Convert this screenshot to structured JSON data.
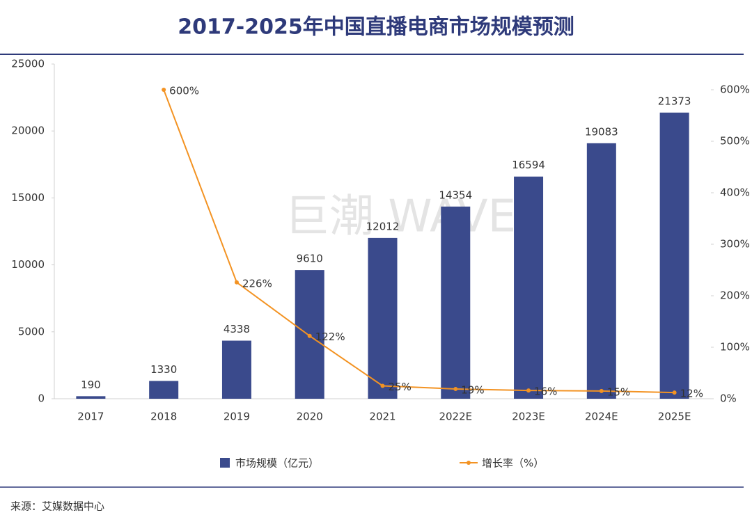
{
  "chart_data": {
    "type": "bar-line",
    "title": "2017-2025年中国直播电商市场规模预测",
    "watermark": "巨潮 WAVE",
    "source": "来源：艾媒数据中心",
    "categories": [
      "2017",
      "2018",
      "2019",
      "2020",
      "2021",
      "2022E",
      "2023E",
      "2024E",
      "2025E"
    ],
    "series": [
      {
        "name": "市场规模（亿元）",
        "type": "bar",
        "color": "#3a4a8c",
        "values": [
          190,
          1330,
          4338,
          9610,
          12012,
          14354,
          16594,
          19083,
          21373
        ]
      },
      {
        "name": "增长率（%）",
        "type": "line",
        "axis": "y2",
        "color": "#f39323",
        "values": [
          null,
          600,
          226,
          122,
          25,
          19,
          16,
          15,
          12
        ],
        "value_labels": [
          null,
          "600%",
          "226%",
          "122%",
          "25%",
          "19%",
          "16%",
          "15%",
          "12%"
        ]
      }
    ],
    "ylim": [
      0,
      25000
    ],
    "yticks": [
      0,
      5000,
      10000,
      15000,
      20000,
      25000
    ],
    "y2lim": [
      0,
      650
    ],
    "y2ticks": [
      {
        "value": 0,
        "label": "0%"
      },
      {
        "value": 100,
        "label": "100%"
      },
      {
        "value": 200,
        "label": "200%"
      },
      {
        "value": 300,
        "label": "300%"
      },
      {
        "value": 400,
        "label": "400%"
      },
      {
        "value": 500,
        "label": "500%"
      },
      {
        "value": 600,
        "label": "600%"
      }
    ],
    "grid": false,
    "legend": "bottom"
  }
}
